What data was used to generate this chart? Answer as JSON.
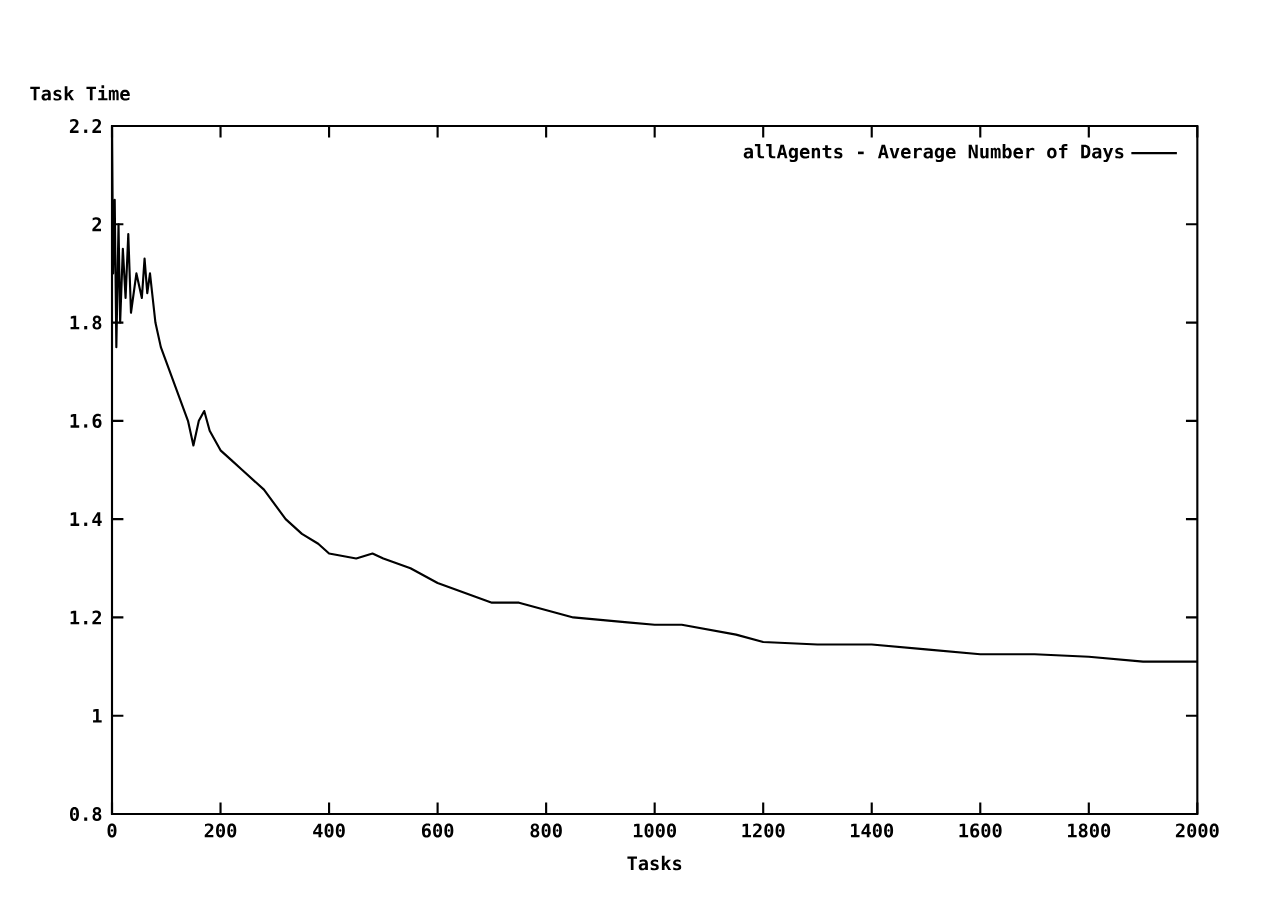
{
  "chart_data": {
    "type": "line",
    "xlabel": "Tasks",
    "ylabel": "Task Time",
    "xlim": [
      0,
      2000
    ],
    "ylim": [
      0.8,
      2.2
    ],
    "xticks": [
      0,
      200,
      400,
      600,
      800,
      1000,
      1200,
      1400,
      1600,
      1800,
      2000
    ],
    "yticks": [
      0.8,
      1,
      1.2,
      1.4,
      1.6,
      1.8,
      2,
      2.2
    ],
    "legend": "top right",
    "marker": "none",
    "line_style": "solid",
    "grid": false,
    "series": [
      {
        "name": "allAgents - Average Number of Days",
        "color": "#000000",
        "x": [
          0,
          2,
          5,
          8,
          12,
          15,
          20,
          25,
          30,
          35,
          45,
          55,
          60,
          65,
          70,
          75,
          80,
          90,
          100,
          120,
          140,
          150,
          160,
          170,
          180,
          200,
          220,
          240,
          260,
          280,
          300,
          320,
          350,
          380,
          400,
          450,
          480,
          500,
          550,
          600,
          650,
          700,
          750,
          800,
          850,
          900,
          950,
          1000,
          1050,
          1100,
          1150,
          1200,
          1300,
          1400,
          1500,
          1600,
          1700,
          1800,
          1900,
          2000
        ],
        "values": [
          2.2,
          1.9,
          2.05,
          1.75,
          2.0,
          1.8,
          1.95,
          1.85,
          1.98,
          1.82,
          1.9,
          1.85,
          1.93,
          1.86,
          1.9,
          1.85,
          1.8,
          1.75,
          1.72,
          1.66,
          1.6,
          1.55,
          1.6,
          1.62,
          1.58,
          1.54,
          1.52,
          1.5,
          1.48,
          1.46,
          1.43,
          1.4,
          1.37,
          1.35,
          1.33,
          1.32,
          1.33,
          1.32,
          1.3,
          1.27,
          1.25,
          1.23,
          1.23,
          1.215,
          1.2,
          1.195,
          1.19,
          1.185,
          1.185,
          1.175,
          1.165,
          1.15,
          1.145,
          1.145,
          1.135,
          1.125,
          1.125,
          1.12,
          1.11,
          1.11
        ]
      }
    ]
  }
}
